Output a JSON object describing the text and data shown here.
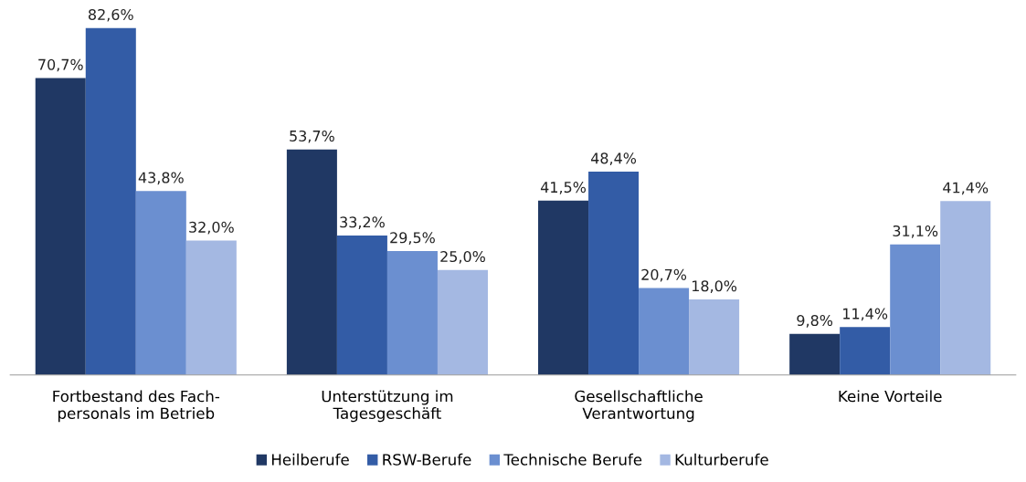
{
  "chart_data": {
    "type": "bar",
    "categories": [
      "Fortbestand des Fach-\npersonals im Betrieb",
      "Unterstützung im\nTagesgeschäft",
      "Gesellschaftliche\nVerantwortung",
      "Keine Vorteile"
    ],
    "series": [
      {
        "name": "Heilberufe",
        "color": "#203864",
        "values": [
          70.7,
          53.7,
          41.5,
          9.8
        ],
        "value_labels": [
          "70,7%",
          "53,7%",
          "41,5%",
          "9,8%"
        ]
      },
      {
        "name": "RSW-Berufe",
        "color": "#335ca6",
        "values": [
          82.6,
          33.2,
          48.4,
          11.4
        ],
        "value_labels": [
          "82,6%",
          "33,2%",
          "48,4%",
          "11,4%"
        ]
      },
      {
        "name": "Technische Berufe",
        "color": "#6b8fd0",
        "values": [
          43.8,
          29.5,
          20.7,
          31.1
        ],
        "value_labels": [
          "43,8%",
          "29,5%",
          "20,7%",
          "31,1%"
        ]
      },
      {
        "name": "Kulturberufe",
        "color": "#a4b8e2",
        "values": [
          32.0,
          25.0,
          18.0,
          41.4
        ],
        "value_labels": [
          "32,0%",
          "25,0%",
          "18,0%",
          "41,4%"
        ]
      }
    ],
    "legend": "bottom",
    "grid": false
  }
}
